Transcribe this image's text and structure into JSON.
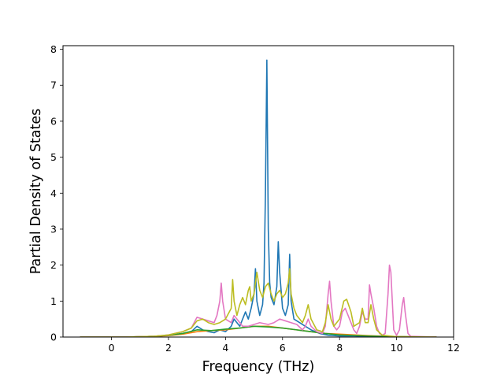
{
  "chart_data": {
    "type": "line",
    "title": "",
    "xlabel": "Frequency (THz)",
    "ylabel": "Partial Density of States",
    "xlim": [
      -1.7,
      12.0
    ],
    "ylim": [
      0,
      8.1
    ],
    "x_ticks": [
      0,
      2,
      4,
      6,
      8,
      10,
      12
    ],
    "y_ticks": [
      0,
      1,
      2,
      3,
      4,
      5,
      6,
      7,
      8
    ],
    "x_tick_labels": [
      "0",
      "2",
      "4",
      "6",
      "8",
      "10",
      "12"
    ],
    "y_tick_labels": [
      "0",
      "1",
      "2",
      "3",
      "4",
      "5",
      "6",
      "7",
      "8"
    ],
    "grid": false,
    "legend": "none",
    "series": [
      {
        "color": "#1f77b4",
        "points": [
          [
            -1.1,
            0
          ],
          [
            0.5,
            0
          ],
          [
            1.5,
            0.02
          ],
          [
            2.0,
            0.05
          ],
          [
            2.5,
            0.1
          ],
          [
            2.8,
            0.15
          ],
          [
            3.0,
            0.3
          ],
          [
            3.2,
            0.2
          ],
          [
            3.4,
            0.15
          ],
          [
            3.6,
            0.12
          ],
          [
            3.8,
            0.2
          ],
          [
            4.0,
            0.15
          ],
          [
            4.2,
            0.3
          ],
          [
            4.3,
            0.5
          ],
          [
            4.4,
            0.4
          ],
          [
            4.5,
            0.3
          ],
          [
            4.6,
            0.5
          ],
          [
            4.7,
            0.7
          ],
          [
            4.8,
            0.5
          ],
          [
            4.9,
            0.8
          ],
          [
            5.0,
            1.2
          ],
          [
            5.05,
            1.9
          ],
          [
            5.1,
            1.0
          ],
          [
            5.2,
            0.6
          ],
          [
            5.3,
            0.9
          ],
          [
            5.35,
            1.5
          ],
          [
            5.4,
            4.0
          ],
          [
            5.45,
            7.7
          ],
          [
            5.5,
            3.0
          ],
          [
            5.55,
            1.5
          ],
          [
            5.6,
            1.1
          ],
          [
            5.7,
            0.9
          ],
          [
            5.8,
            1.4
          ],
          [
            5.85,
            2.65
          ],
          [
            5.9,
            1.8
          ],
          [
            6.0,
            0.8
          ],
          [
            6.1,
            0.6
          ],
          [
            6.2,
            0.9
          ],
          [
            6.25,
            2.3
          ],
          [
            6.3,
            1.0
          ],
          [
            6.4,
            0.5
          ],
          [
            6.6,
            0.4
          ],
          [
            6.8,
            0.3
          ],
          [
            7.0,
            0.2
          ],
          [
            7.3,
            0.1
          ],
          [
            7.6,
            0.05
          ],
          [
            8.0,
            0.03
          ],
          [
            8.5,
            0.03
          ],
          [
            9.0,
            0.02
          ],
          [
            10.0,
            0.01
          ],
          [
            11.4,
            0
          ]
        ]
      },
      {
        "color": "#ff7f0e",
        "points": [
          [
            -1.1,
            0
          ],
          [
            0.5,
            0
          ],
          [
            1.5,
            0.02
          ],
          [
            2.0,
            0.04
          ],
          [
            2.5,
            0.08
          ],
          [
            3.0,
            0.15
          ],
          [
            3.5,
            0.18
          ],
          [
            4.0,
            0.2
          ],
          [
            4.5,
            0.25
          ],
          [
            5.0,
            0.3
          ],
          [
            5.5,
            0.3
          ],
          [
            6.0,
            0.25
          ],
          [
            6.5,
            0.2
          ],
          [
            7.0,
            0.15
          ],
          [
            7.5,
            0.1
          ],
          [
            8.0,
            0.08
          ],
          [
            9.0,
            0.04
          ],
          [
            10.0,
            0.01
          ],
          [
            11.4,
            0
          ]
        ]
      },
      {
        "color": "#2ca02c",
        "points": [
          [
            -1.1,
            0
          ],
          [
            0.5,
            0
          ],
          [
            1.5,
            0.02
          ],
          [
            2.0,
            0.05
          ],
          [
            2.5,
            0.1
          ],
          [
            3.0,
            0.2
          ],
          [
            3.5,
            0.18
          ],
          [
            4.0,
            0.22
          ],
          [
            4.5,
            0.25
          ],
          [
            5.0,
            0.3
          ],
          [
            5.5,
            0.28
          ],
          [
            6.0,
            0.25
          ],
          [
            6.5,
            0.2
          ],
          [
            7.0,
            0.15
          ],
          [
            7.5,
            0.1
          ],
          [
            8.0,
            0.06
          ],
          [
            9.0,
            0.03
          ],
          [
            10.0,
            0.01
          ],
          [
            11.4,
            0
          ]
        ]
      },
      {
        "color": "#e377c2",
        "points": [
          [
            -1.1,
            0
          ],
          [
            0.5,
            0
          ],
          [
            1.5,
            0.02
          ],
          [
            2.0,
            0.06
          ],
          [
            2.5,
            0.15
          ],
          [
            2.8,
            0.25
          ],
          [
            3.0,
            0.55
          ],
          [
            3.2,
            0.5
          ],
          [
            3.4,
            0.45
          ],
          [
            3.6,
            0.4
          ],
          [
            3.7,
            0.6
          ],
          [
            3.8,
            1.0
          ],
          [
            3.85,
            1.5
          ],
          [
            3.9,
            1.0
          ],
          [
            4.0,
            0.5
          ],
          [
            4.2,
            0.4
          ],
          [
            4.3,
            0.6
          ],
          [
            4.4,
            0.5
          ],
          [
            4.5,
            0.4
          ],
          [
            4.6,
            0.3
          ],
          [
            4.8,
            0.3
          ],
          [
            5.0,
            0.35
          ],
          [
            5.2,
            0.4
          ],
          [
            5.5,
            0.35
          ],
          [
            5.7,
            0.4
          ],
          [
            5.9,
            0.5
          ],
          [
            6.1,
            0.45
          ],
          [
            6.3,
            0.4
          ],
          [
            6.5,
            0.35
          ],
          [
            6.7,
            0.2
          ],
          [
            6.8,
            0.3
          ],
          [
            6.9,
            0.5
          ],
          [
            7.0,
            0.3
          ],
          [
            7.2,
            0.15
          ],
          [
            7.4,
            0.1
          ],
          [
            7.5,
            0.3
          ],
          [
            7.6,
            1.2
          ],
          [
            7.65,
            1.55
          ],
          [
            7.7,
            1.0
          ],
          [
            7.8,
            0.3
          ],
          [
            7.9,
            0.2
          ],
          [
            8.0,
            0.3
          ],
          [
            8.1,
            0.7
          ],
          [
            8.2,
            0.8
          ],
          [
            8.3,
            0.6
          ],
          [
            8.4,
            0.4
          ],
          [
            8.5,
            0.2
          ],
          [
            8.6,
            0.1
          ],
          [
            8.7,
            0.3
          ],
          [
            8.8,
            0.7
          ],
          [
            8.9,
            0.5
          ],
          [
            9.0,
            0.5
          ],
          [
            9.05,
            1.45
          ],
          [
            9.1,
            1.2
          ],
          [
            9.2,
            0.8
          ],
          [
            9.3,
            0.3
          ],
          [
            9.4,
            0.1
          ],
          [
            9.5,
            0.05
          ],
          [
            9.6,
            0.1
          ],
          [
            9.7,
            1.2
          ],
          [
            9.75,
            2.0
          ],
          [
            9.8,
            1.8
          ],
          [
            9.85,
            1.0
          ],
          [
            9.9,
            0.2
          ],
          [
            10.0,
            0.05
          ],
          [
            10.1,
            0.2
          ],
          [
            10.2,
            0.9
          ],
          [
            10.25,
            1.1
          ],
          [
            10.3,
            0.7
          ],
          [
            10.4,
            0.1
          ],
          [
            10.5,
            0.02
          ],
          [
            11.4,
            0
          ]
        ]
      },
      {
        "color": "#bcbd22",
        "points": [
          [
            -1.1,
            0
          ],
          [
            0.5,
            0
          ],
          [
            1.5,
            0.02
          ],
          [
            2.0,
            0.06
          ],
          [
            2.5,
            0.15
          ],
          [
            2.8,
            0.25
          ],
          [
            3.0,
            0.45
          ],
          [
            3.2,
            0.5
          ],
          [
            3.4,
            0.4
          ],
          [
            3.6,
            0.35
          ],
          [
            3.8,
            0.4
          ],
          [
            4.0,
            0.5
          ],
          [
            4.2,
            0.8
          ],
          [
            4.25,
            1.6
          ],
          [
            4.3,
            1.0
          ],
          [
            4.4,
            0.6
          ],
          [
            4.5,
            0.9
          ],
          [
            4.6,
            1.1
          ],
          [
            4.7,
            0.9
          ],
          [
            4.8,
            1.3
          ],
          [
            4.85,
            1.4
          ],
          [
            4.9,
            1.0
          ],
          [
            5.0,
            1.2
          ],
          [
            5.1,
            1.8
          ],
          [
            5.2,
            1.3
          ],
          [
            5.3,
            1.1
          ],
          [
            5.4,
            1.4
          ],
          [
            5.5,
            1.5
          ],
          [
            5.6,
            1.2
          ],
          [
            5.7,
            1.0
          ],
          [
            5.8,
            1.2
          ],
          [
            5.9,
            1.3
          ],
          [
            6.0,
            1.1
          ],
          [
            6.1,
            1.2
          ],
          [
            6.2,
            1.5
          ],
          [
            6.25,
            1.9
          ],
          [
            6.3,
            1.2
          ],
          [
            6.4,
            0.8
          ],
          [
            6.5,
            0.6
          ],
          [
            6.6,
            0.5
          ],
          [
            6.7,
            0.4
          ],
          [
            6.8,
            0.6
          ],
          [
            6.9,
            0.9
          ],
          [
            7.0,
            0.5
          ],
          [
            7.2,
            0.2
          ],
          [
            7.4,
            0.15
          ],
          [
            7.5,
            0.4
          ],
          [
            7.6,
            0.9
          ],
          [
            7.7,
            0.5
          ],
          [
            7.8,
            0.3
          ],
          [
            8.0,
            0.5
          ],
          [
            8.15,
            1.0
          ],
          [
            8.25,
            1.05
          ],
          [
            8.4,
            0.7
          ],
          [
            8.5,
            0.3
          ],
          [
            8.7,
            0.4
          ],
          [
            8.8,
            0.8
          ],
          [
            8.9,
            0.4
          ],
          [
            9.0,
            0.4
          ],
          [
            9.1,
            0.9
          ],
          [
            9.2,
            0.5
          ],
          [
            9.3,
            0.2
          ],
          [
            9.5,
            0.05
          ],
          [
            10.0,
            0.01
          ],
          [
            11.4,
            0
          ]
        ]
      }
    ]
  }
}
